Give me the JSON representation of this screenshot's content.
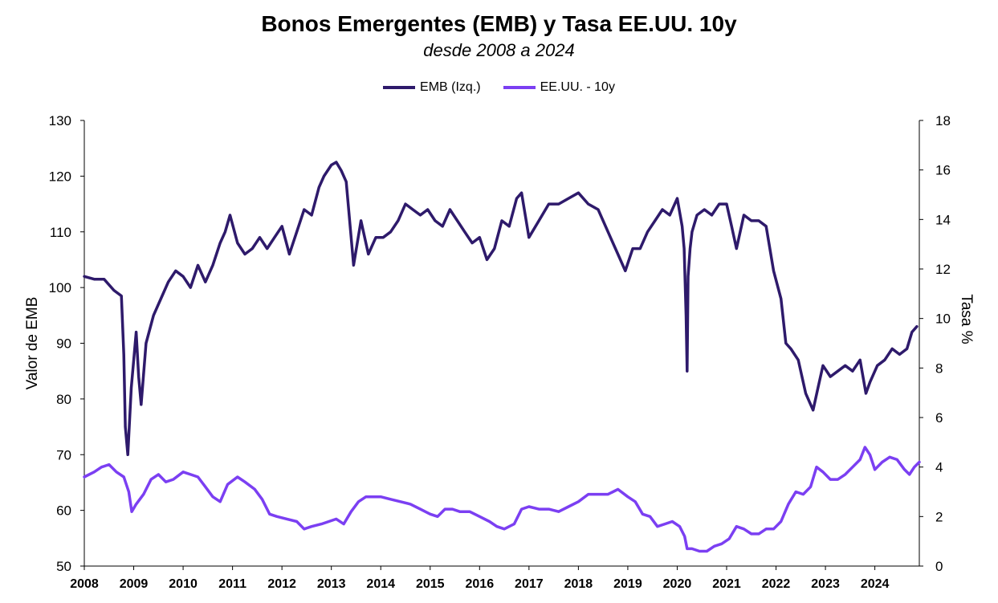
{
  "title": "Bonos Emergentes (EMB) y Tasa EE.UU. 10y",
  "subtitle": "desde 2008 a 2024",
  "colors": {
    "emb": "#2e1a6b",
    "us10y": "#7b3ff2",
    "axis": "#000000"
  },
  "chart_data": {
    "type": "line",
    "ylabel_left": "Valor de EMB",
    "ylabel_right": "Tasa %",
    "ylim_left": [
      50,
      130
    ],
    "ylim_right": [
      0,
      18
    ],
    "xlim": [
      2008,
      2024.9
    ],
    "grid": false,
    "legend_position": "top-center",
    "x_ticks": [
      "2008",
      "2009",
      "2010",
      "2011",
      "2012",
      "2013",
      "2014",
      "2015",
      "2016",
      "2017",
      "2018",
      "2019",
      "2020",
      "2021",
      "2022",
      "2023",
      "2024"
    ],
    "yticks_left": [
      "50",
      "60",
      "70",
      "80",
      "90",
      "100",
      "110",
      "120",
      "130"
    ],
    "yticks_right": [
      "0",
      "2",
      "4",
      "6",
      "8",
      "10",
      "12",
      "14",
      "16",
      "18"
    ],
    "series": [
      {
        "name": "EMB (Izq.)",
        "axis": "left",
        "x": [
          2008.0,
          2008.2,
          2008.4,
          2008.6,
          2008.75,
          2008.8,
          2008.83,
          2008.88,
          2008.95,
          2009.05,
          2009.1,
          2009.15,
          2009.25,
          2009.4,
          2009.55,
          2009.7,
          2009.85,
          2010.0,
          2010.15,
          2010.3,
          2010.45,
          2010.6,
          2010.75,
          2010.85,
          2010.95,
          2011.1,
          2011.25,
          2011.4,
          2011.55,
          2011.7,
          2011.85,
          2012.0,
          2012.15,
          2012.3,
          2012.45,
          2012.6,
          2012.75,
          2012.85,
          2013.0,
          2013.1,
          2013.2,
          2013.3,
          2013.45,
          2013.6,
          2013.75,
          2013.9,
          2014.05,
          2014.2,
          2014.35,
          2014.5,
          2014.65,
          2014.8,
          2014.95,
          2015.1,
          2015.25,
          2015.4,
          2015.55,
          2015.7,
          2015.85,
          2016.0,
          2016.15,
          2016.3,
          2016.45,
          2016.6,
          2016.75,
          2016.85,
          2017.0,
          2017.2,
          2017.4,
          2017.6,
          2017.8,
          2018.0,
          2018.2,
          2018.4,
          2018.6,
          2018.8,
          2018.95,
          2019.1,
          2019.25,
          2019.4,
          2019.55,
          2019.7,
          2019.85,
          2020.0,
          2020.1,
          2020.14,
          2020.18,
          2020.2,
          2020.22,
          2020.26,
          2020.3,
          2020.4,
          2020.55,
          2020.7,
          2020.85,
          2021.0,
          2021.1,
          2021.2,
          2021.35,
          2021.5,
          2021.65,
          2021.8,
          2021.95,
          2022.1,
          2022.2,
          2022.3,
          2022.45,
          2022.6,
          2022.75,
          2022.85,
          2022.95,
          2023.1,
          2023.25,
          2023.4,
          2023.55,
          2023.7,
          2023.82,
          2023.9,
          2024.05,
          2024.2,
          2024.35,
          2024.5,
          2024.65,
          2024.75,
          2024.85
        ],
        "values": [
          102,
          101.5,
          101.5,
          99.5,
          98.5,
          88,
          75,
          70,
          82,
          92,
          84,
          79,
          90,
          95,
          98,
          101,
          103,
          102,
          100,
          104,
          101,
          104,
          108,
          110,
          113,
          108,
          106,
          107,
          109,
          107,
          109,
          111,
          106,
          110,
          114,
          113,
          118,
          120,
          122,
          122.5,
          121,
          119,
          104,
          112,
          106,
          109,
          109,
          110,
          112,
          115,
          114,
          113,
          114,
          112,
          111,
          114,
          112,
          110,
          108,
          109,
          105,
          107,
          112,
          111,
          116,
          117,
          109,
          112,
          115,
          115,
          116,
          117,
          115,
          114,
          110,
          106,
          103,
          107,
          107,
          110,
          112,
          114,
          113,
          116,
          111,
          107,
          95,
          85,
          102,
          107,
          110,
          113,
          114,
          113,
          115,
          115,
          111,
          107,
          113,
          112,
          112,
          111,
          103,
          98,
          90,
          89,
          87,
          81,
          78,
          82,
          86,
          84,
          85,
          86,
          85,
          87,
          81,
          83,
          86,
          87,
          89,
          88,
          89,
          92,
          93
        ]
      },
      {
        "name": "EE.UU. - 10y",
        "axis": "right",
        "x": [
          2008.0,
          2008.2,
          2008.35,
          2008.5,
          2008.65,
          2008.8,
          2008.9,
          2008.96,
          2009.05,
          2009.2,
          2009.35,
          2009.5,
          2009.65,
          2009.8,
          2010.0,
          2010.15,
          2010.3,
          2010.45,
          2010.6,
          2010.75,
          2010.9,
          2011.1,
          2011.25,
          2011.45,
          2011.6,
          2011.75,
          2011.9,
          2012.1,
          2012.3,
          2012.45,
          2012.6,
          2012.8,
          2012.95,
          2013.1,
          2013.25,
          2013.4,
          2013.55,
          2013.7,
          2013.85,
          2014.0,
          2014.2,
          2014.4,
          2014.6,
          2014.8,
          2015.0,
          2015.15,
          2015.3,
          2015.45,
          2015.6,
          2015.8,
          2016.0,
          2016.2,
          2016.35,
          2016.5,
          2016.7,
          2016.85,
          2017.0,
          2017.2,
          2017.4,
          2017.6,
          2017.8,
          2018.0,
          2018.2,
          2018.4,
          2018.6,
          2018.8,
          2019.0,
          2019.15,
          2019.3,
          2019.45,
          2019.6,
          2019.75,
          2019.9,
          2020.05,
          2020.15,
          2020.2,
          2020.3,
          2020.45,
          2020.6,
          2020.75,
          2020.9,
          2021.05,
          2021.2,
          2021.35,
          2021.5,
          2021.65,
          2021.8,
          2021.95,
          2022.1,
          2022.25,
          2022.4,
          2022.55,
          2022.7,
          2022.82,
          2022.95,
          2023.1,
          2023.25,
          2023.4,
          2023.55,
          2023.7,
          2023.8,
          2023.9,
          2024.0,
          2024.15,
          2024.3,
          2024.45,
          2024.6,
          2024.7,
          2024.8,
          2024.9
        ],
        "values": [
          3.6,
          3.8,
          4.0,
          4.1,
          3.8,
          3.6,
          3.0,
          2.2,
          2.5,
          2.9,
          3.5,
          3.7,
          3.4,
          3.5,
          3.8,
          3.7,
          3.6,
          3.2,
          2.8,
          2.6,
          3.3,
          3.6,
          3.4,
          3.1,
          2.7,
          2.1,
          2.0,
          1.9,
          1.8,
          1.5,
          1.6,
          1.7,
          1.8,
          1.9,
          1.7,
          2.2,
          2.6,
          2.8,
          2.8,
          2.8,
          2.7,
          2.6,
          2.5,
          2.3,
          2.1,
          2.0,
          2.3,
          2.3,
          2.2,
          2.2,
          2.0,
          1.8,
          1.6,
          1.5,
          1.7,
          2.3,
          2.4,
          2.3,
          2.3,
          2.2,
          2.4,
          2.6,
          2.9,
          2.9,
          2.9,
          3.1,
          2.8,
          2.6,
          2.1,
          2.0,
          1.6,
          1.7,
          1.8,
          1.6,
          1.2,
          0.7,
          0.7,
          0.6,
          0.6,
          0.8,
          0.9,
          1.1,
          1.6,
          1.5,
          1.3,
          1.3,
          1.5,
          1.5,
          1.8,
          2.5,
          3.0,
          2.9,
          3.2,
          4.0,
          3.8,
          3.5,
          3.5,
          3.7,
          4.0,
          4.3,
          4.8,
          4.5,
          3.9,
          4.2,
          4.4,
          4.3,
          3.9,
          3.7,
          4.0,
          4.2
        ]
      }
    ]
  }
}
